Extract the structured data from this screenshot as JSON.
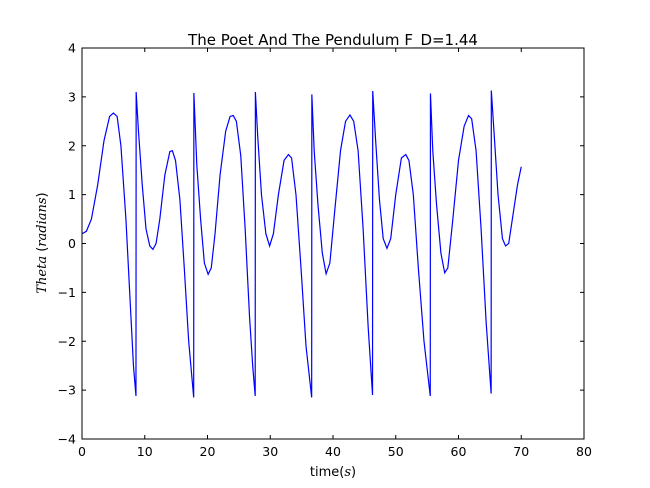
{
  "chart_data": {
    "type": "line",
    "title": "The Poet And The Pendulum F_D=1.44",
    "xlabel": {
      "text": "time(",
      "math": "s",
      "close": ")"
    },
    "ylabel": {
      "math": "Theta",
      "open": " (",
      "math2": "radians",
      "close": ")"
    },
    "xlim": [
      0,
      80
    ],
    "ylim": [
      -4,
      4
    ],
    "xticks": [
      0,
      10,
      20,
      30,
      40,
      50,
      60,
      70,
      80
    ],
    "yticks": [
      -4,
      -3,
      -2,
      -1,
      0,
      1,
      2,
      3,
      4
    ],
    "xtick_labels": [
      "0",
      "10",
      "20",
      "30",
      "40",
      "50",
      "60",
      "70",
      "80"
    ],
    "ytick_labels": [
      "−4",
      "−3",
      "−2",
      "−1",
      "0",
      "1",
      "2",
      "3",
      "4"
    ],
    "grid": false,
    "series": [
      {
        "color": "#0000ff",
        "points": [
          [
            0,
            0.2
          ],
          [
            0.7,
            0.25
          ],
          [
            1.5,
            0.5
          ],
          [
            2.5,
            1.2
          ],
          [
            3.5,
            2.1
          ],
          [
            4.4,
            2.6
          ],
          [
            5.0,
            2.67
          ],
          [
            5.6,
            2.6
          ],
          [
            6.2,
            2.0
          ],
          [
            7.0,
            0.5
          ],
          [
            7.6,
            -1.0
          ],
          [
            8.2,
            -2.5
          ],
          [
            8.6,
            -3.12
          ],
          [
            8.63,
            3.1
          ],
          [
            9.0,
            2.3
          ],
          [
            9.6,
            1.2
          ],
          [
            10.2,
            0.3
          ],
          [
            10.8,
            -0.05
          ],
          [
            11.3,
            -0.12
          ],
          [
            11.8,
            0.0
          ],
          [
            12.4,
            0.5
          ],
          [
            13.2,
            1.4
          ],
          [
            14.0,
            1.88
          ],
          [
            14.4,
            1.9
          ],
          [
            14.9,
            1.7
          ],
          [
            15.6,
            0.9
          ],
          [
            16.3,
            -0.5
          ],
          [
            17.0,
            -2.0
          ],
          [
            17.8,
            -3.15
          ],
          [
            17.83,
            3.08
          ],
          [
            18.3,
            1.6
          ],
          [
            18.9,
            0.5
          ],
          [
            19.5,
            -0.4
          ],
          [
            20.1,
            -0.63
          ],
          [
            20.6,
            -0.5
          ],
          [
            21.2,
            0.2
          ],
          [
            22.0,
            1.4
          ],
          [
            22.9,
            2.3
          ],
          [
            23.6,
            2.6
          ],
          [
            24.1,
            2.62
          ],
          [
            24.6,
            2.5
          ],
          [
            25.3,
            1.8
          ],
          [
            26.0,
            0.3
          ],
          [
            26.7,
            -1.5
          ],
          [
            27.2,
            -2.5
          ],
          [
            27.6,
            -3.12
          ],
          [
            27.63,
            3.1
          ],
          [
            28.0,
            2.2
          ],
          [
            28.6,
            1.0
          ],
          [
            29.3,
            0.2
          ],
          [
            29.9,
            -0.05
          ],
          [
            30.5,
            0.2
          ],
          [
            31.3,
            1.0
          ],
          [
            32.2,
            1.7
          ],
          [
            32.9,
            1.82
          ],
          [
            33.4,
            1.75
          ],
          [
            34.1,
            1.0
          ],
          [
            34.9,
            -0.5
          ],
          [
            35.7,
            -2.1
          ],
          [
            36.6,
            -3.15
          ],
          [
            36.63,
            3.05
          ],
          [
            37.0,
            1.9
          ],
          [
            37.6,
            0.8
          ],
          [
            38.3,
            -0.2
          ],
          [
            38.9,
            -0.62
          ],
          [
            39.5,
            -0.4
          ],
          [
            40.3,
            0.7
          ],
          [
            41.2,
            1.9
          ],
          [
            42.0,
            2.5
          ],
          [
            42.7,
            2.63
          ],
          [
            43.3,
            2.5
          ],
          [
            44.0,
            1.9
          ],
          [
            44.8,
            0.3
          ],
          [
            45.6,
            -1.7
          ],
          [
            46.3,
            -3.1
          ],
          [
            46.33,
            3.12
          ],
          [
            46.8,
            2.1
          ],
          [
            47.4,
            0.9
          ],
          [
            48.0,
            0.1
          ],
          [
            48.6,
            -0.1
          ],
          [
            49.2,
            0.1
          ],
          [
            50.0,
            1.0
          ],
          [
            50.9,
            1.75
          ],
          [
            51.6,
            1.82
          ],
          [
            52.1,
            1.7
          ],
          [
            52.8,
            1.0
          ],
          [
            53.6,
            -0.5
          ],
          [
            54.5,
            -2.0
          ],
          [
            55.5,
            -3.12
          ],
          [
            55.53,
            3.07
          ],
          [
            55.9,
            1.9
          ],
          [
            56.5,
            0.8
          ],
          [
            57.2,
            -0.2
          ],
          [
            57.8,
            -0.6
          ],
          [
            58.3,
            -0.5
          ],
          [
            59.1,
            0.5
          ],
          [
            60.0,
            1.7
          ],
          [
            60.9,
            2.4
          ],
          [
            61.6,
            2.62
          ],
          [
            62.1,
            2.55
          ],
          [
            62.8,
            1.9
          ],
          [
            63.6,
            0.3
          ],
          [
            64.4,
            -1.6
          ],
          [
            65.2,
            -3.07
          ],
          [
            65.23,
            3.13
          ],
          [
            65.7,
            2.2
          ],
          [
            66.3,
            1.0
          ],
          [
            67.0,
            0.1
          ],
          [
            67.5,
            -0.05
          ],
          [
            68.0,
            0.0
          ],
          [
            68.7,
            0.6
          ],
          [
            69.4,
            1.2
          ],
          [
            70.0,
            1.57
          ]
        ]
      }
    ]
  }
}
